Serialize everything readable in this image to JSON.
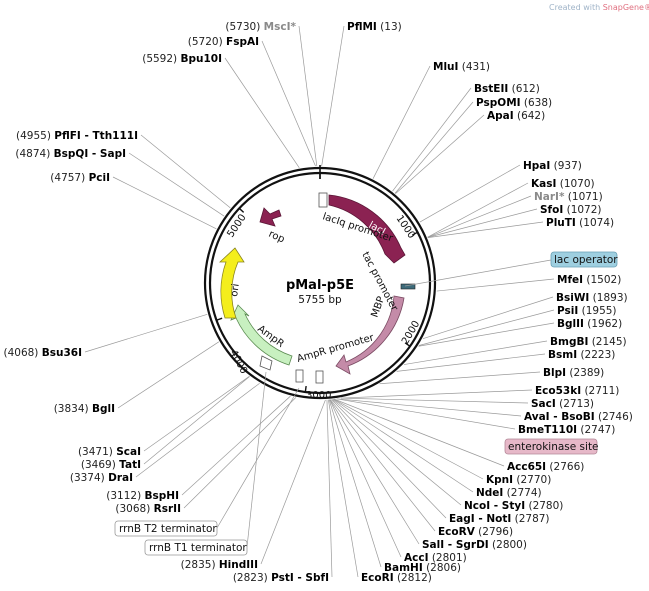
{
  "brand": {
    "prefix": "Created with ",
    "name": "SnapGene®"
  },
  "plasmid": {
    "name": "pMal-p5E",
    "length": "5755 bp"
  },
  "tick_labels": [
    "1000",
    "2000",
    "3000",
    "4000",
    "5000"
  ],
  "features": {
    "lacI": "lacI",
    "lacIq_promoter": "lacIq promoter",
    "tac_promoter": "tac promoter",
    "MBP": "MBP",
    "AmpR_promoter": "AmpR promoter",
    "AmpR": "AmpR",
    "ori": "ori",
    "rop": "rop"
  },
  "boxed_labels": {
    "lac_operator": "lac operator",
    "enterokinase_site": "enterokinase site",
    "rrnB_T2_terminator": "rrnB T2 terminator",
    "rrnB_T1_terminator": "rrnB T1 terminator"
  },
  "colors": {
    "lacI": "#8b2252",
    "MBP": "#c48ba8",
    "AmpR": "#c8f0c0",
    "ori": "#f4ee1c",
    "rop": "#8b2252",
    "lac_operator_box": "#9ecfe0",
    "enterokinase_box": "#e6b8c8"
  },
  "enzymes_left": [
    {
      "pos": "(5730)",
      "name": "MscI*",
      "gray": true
    },
    {
      "pos": "(5720)",
      "name": "FspAI"
    },
    {
      "pos": "(5592)",
      "name": "Bpu10I"
    },
    {
      "pos": "(4955)",
      "name": "PflFI - Tth111I"
    },
    {
      "pos": "(4874)",
      "name": "BspQI - SapI"
    },
    {
      "pos": "(4757)",
      "name": "PciI"
    },
    {
      "pos": "(4068)",
      "name": "Bsu36I"
    },
    {
      "pos": "(3834)",
      "name": "BglI"
    },
    {
      "pos": "(3471)",
      "name": "ScaI"
    },
    {
      "pos": "(3469)",
      "name": "TatI"
    },
    {
      "pos": "(3374)",
      "name": "DraI"
    },
    {
      "pos": "(3112)",
      "name": "BspHI"
    },
    {
      "pos": "(3068)",
      "name": "RsrII"
    },
    {
      "pos": "(2835)",
      "name": "HindIII"
    },
    {
      "pos": "(2823)",
      "name": "PstI - SbfI"
    }
  ],
  "enzymes_right": [
    {
      "name": "PflMI",
      "pos": "(13)"
    },
    {
      "name": "MluI",
      "pos": "(431)"
    },
    {
      "name": "BstEII",
      "pos": "(612)"
    },
    {
      "name": "PspOMI",
      "pos": "(638)"
    },
    {
      "name": "ApaI",
      "pos": "(642)"
    },
    {
      "name": "HpaI",
      "pos": "(937)"
    },
    {
      "name": "KasI",
      "pos": "(1070)"
    },
    {
      "name": "NarI*",
      "pos": "(1071)",
      "gray": true
    },
    {
      "name": "SfoI",
      "pos": "(1072)"
    },
    {
      "name": "PluTI",
      "pos": "(1074)"
    },
    {
      "name": "MfeI",
      "pos": "(1502)"
    },
    {
      "name": "BsiWI",
      "pos": "(1893)"
    },
    {
      "name": "PsiI",
      "pos": "(1955)"
    },
    {
      "name": "BglII",
      "pos": "(1962)"
    },
    {
      "name": "BmgBI",
      "pos": "(2145)"
    },
    {
      "name": "BsmI",
      "pos": "(2223)"
    },
    {
      "name": "BlpI",
      "pos": "(2389)"
    },
    {
      "name": "Eco53kI",
      "pos": "(2711)"
    },
    {
      "name": "SacI",
      "pos": "(2713)"
    },
    {
      "name": "AvaI - BsoBI",
      "pos": "(2746)"
    },
    {
      "name": "BmeT110I",
      "pos": "(2747)"
    },
    {
      "name": "Acc65I",
      "pos": "(2766)"
    },
    {
      "name": "KpnI",
      "pos": "(2770)"
    },
    {
      "name": "NdeI",
      "pos": "(2774)"
    },
    {
      "name": "NcoI - StyI",
      "pos": "(2780)"
    },
    {
      "name": "EagI - NotI",
      "pos": "(2787)"
    },
    {
      "name": "EcoRV",
      "pos": "(2796)"
    },
    {
      "name": "SalI - SgrDI",
      "pos": "(2800)"
    },
    {
      "name": "AccI",
      "pos": "(2801)"
    },
    {
      "name": "BamHI",
      "pos": "(2806)"
    },
    {
      "name": "EcoRI",
      "pos": "(2812)"
    }
  ]
}
